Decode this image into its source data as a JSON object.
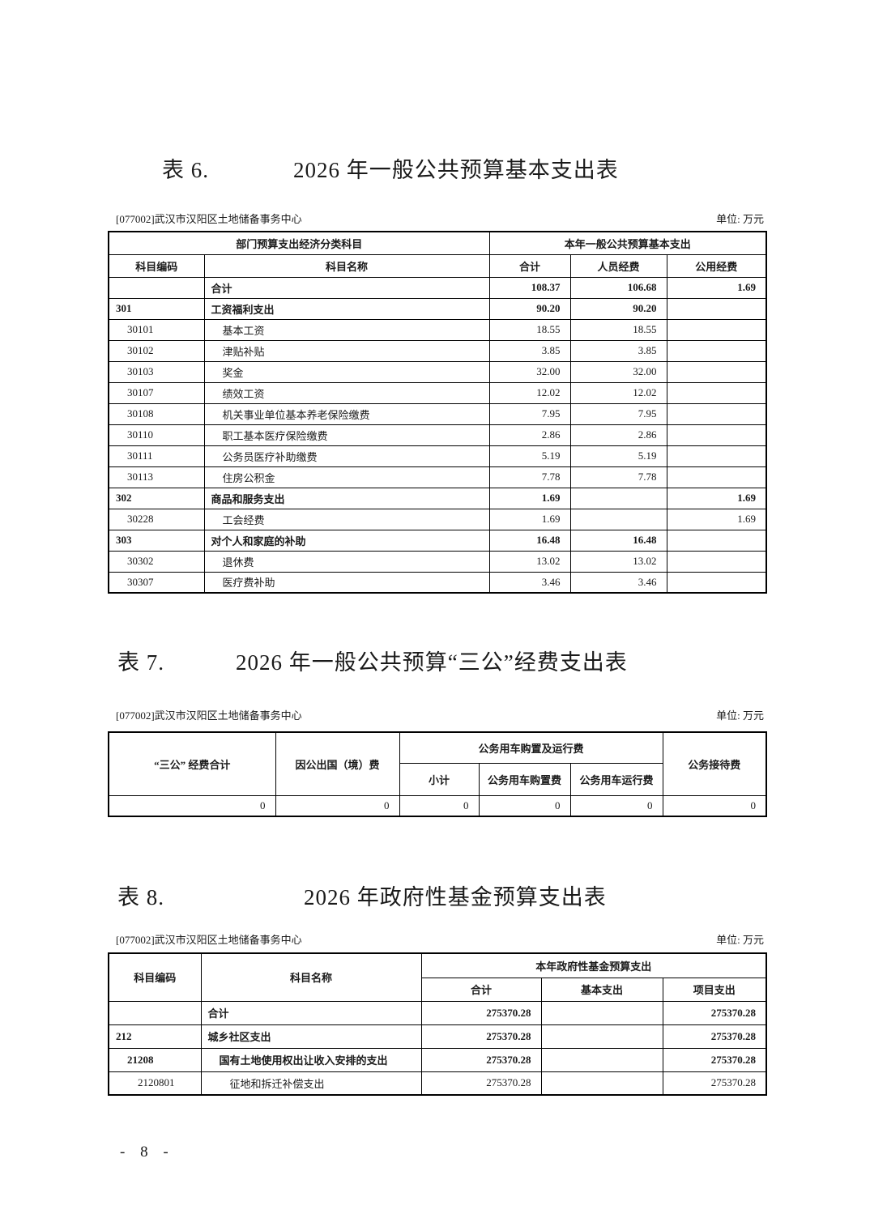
{
  "page": {
    "footer_page_number": "- 8 -"
  },
  "tables": {
    "t6": {
      "label": "表 6.",
      "title": "2026 年一般公共预算基本支出表",
      "org": "[077002]武汉市汉阳区土地储备事务中心",
      "unit": "单位: 万元",
      "header": {
        "group_left": "部门预算支出经济分类科目",
        "group_right": "本年一般公共预算基本支出",
        "code": "科目编码",
        "name": "科目名称",
        "total": "合计",
        "personnel": "人员经费",
        "public": "公用经费"
      },
      "rows": [
        {
          "code": "",
          "name": "合计",
          "bold": true,
          "code_indent": 0,
          "name_indent": 0,
          "values": [
            "108.37",
            "106.68",
            "1.69"
          ]
        },
        {
          "code": "301",
          "name": "工资福利支出",
          "bold": true,
          "code_indent": 0,
          "name_indent": 0,
          "values": [
            "90.20",
            "90.20",
            ""
          ]
        },
        {
          "code": "30101",
          "name": "基本工资",
          "code_indent": 1,
          "name_indent": 1,
          "values": [
            "18.55",
            "18.55",
            ""
          ]
        },
        {
          "code": "30102",
          "name": "津贴补贴",
          "code_indent": 1,
          "name_indent": 1,
          "values": [
            "3.85",
            "3.85",
            ""
          ]
        },
        {
          "code": "30103",
          "name": "奖金",
          "code_indent": 1,
          "name_indent": 1,
          "values": [
            "32.00",
            "32.00",
            ""
          ]
        },
        {
          "code": "30107",
          "name": "绩效工资",
          "code_indent": 1,
          "name_indent": 1,
          "values": [
            "12.02",
            "12.02",
            ""
          ]
        },
        {
          "code": "30108",
          "name": "机关事业单位基本养老保险缴费",
          "code_indent": 1,
          "name_indent": 1,
          "values": [
            "7.95",
            "7.95",
            ""
          ]
        },
        {
          "code": "30110",
          "name": "职工基本医疗保险缴费",
          "code_indent": 1,
          "name_indent": 1,
          "values": [
            "2.86",
            "2.86",
            ""
          ]
        },
        {
          "code": "30111",
          "name": "公务员医疗补助缴费",
          "code_indent": 1,
          "name_indent": 1,
          "values": [
            "5.19",
            "5.19",
            ""
          ]
        },
        {
          "code": "30113",
          "name": "住房公积金",
          "code_indent": 1,
          "name_indent": 1,
          "values": [
            "7.78",
            "7.78",
            ""
          ]
        },
        {
          "code": "302",
          "name": "商品和服务支出",
          "bold": true,
          "code_indent": 0,
          "name_indent": 0,
          "values": [
            "1.69",
            "",
            "1.69"
          ]
        },
        {
          "code": "30228",
          "name": "工会经费",
          "code_indent": 1,
          "name_indent": 1,
          "values": [
            "1.69",
            "",
            "1.69"
          ]
        },
        {
          "code": "303",
          "name": "对个人和家庭的补助",
          "bold": true,
          "code_indent": 0,
          "name_indent": 0,
          "values": [
            "16.48",
            "16.48",
            ""
          ]
        },
        {
          "code": "30302",
          "name": "退休费",
          "code_indent": 1,
          "name_indent": 1,
          "values": [
            "13.02",
            "13.02",
            ""
          ]
        },
        {
          "code": "30307",
          "name": "医疗费补助",
          "code_indent": 1,
          "name_indent": 1,
          "values": [
            "3.46",
            "3.46",
            ""
          ]
        }
      ]
    },
    "t7": {
      "label": "表 7.",
      "title": "2026 年一般公共预算“三公”经费支出表",
      "org": "[077002]武汉市汉阳区土地储备事务中心",
      "unit": "单位: 万元",
      "header": {
        "total": "“三公” 经费合计",
        "abroad": "因公出国（境）费",
        "vehicle_group": "公务用车购置及运行费",
        "vehicle_subtotal": "小计",
        "vehicle_purchase": "公务用车购置费",
        "vehicle_operation": "公务用车运行费",
        "reception": "公务接待费"
      },
      "rows": [
        {
          "values": [
            "0",
            "0",
            "0",
            "0",
            "0",
            "0"
          ]
        }
      ]
    },
    "t8": {
      "label": "表 8.",
      "title": "2026 年政府性基金预算支出表",
      "org": "[077002]武汉市汉阳区土地储备事务中心",
      "unit": "单位: 万元",
      "header": {
        "code": "科目编码",
        "name": "科目名称",
        "group_right": "本年政府性基金预算支出",
        "total": "合计",
        "basic": "基本支出",
        "project": "项目支出"
      },
      "rows": [
        {
          "code": "",
          "name": "合计",
          "bold": true,
          "code_indent": 0,
          "name_indent": 0,
          "values": [
            "275370.28",
            "",
            "275370.28"
          ]
        },
        {
          "code": "212",
          "name": "城乡社区支出",
          "bold": true,
          "code_indent": 0,
          "name_indent": 0,
          "values": [
            "275370.28",
            "",
            "275370.28"
          ]
        },
        {
          "code": "21208",
          "name": "国有土地使用权出让收入安排的支出",
          "bold": true,
          "code_indent": 1,
          "name_indent": 1,
          "values": [
            "275370.28",
            "",
            "275370.28"
          ]
        },
        {
          "code": "2120801",
          "name": "征地和拆迁补偿支出",
          "code_indent": 2,
          "name_indent": 2,
          "values": [
            "275370.28",
            "",
            "275370.28"
          ]
        }
      ]
    }
  }
}
